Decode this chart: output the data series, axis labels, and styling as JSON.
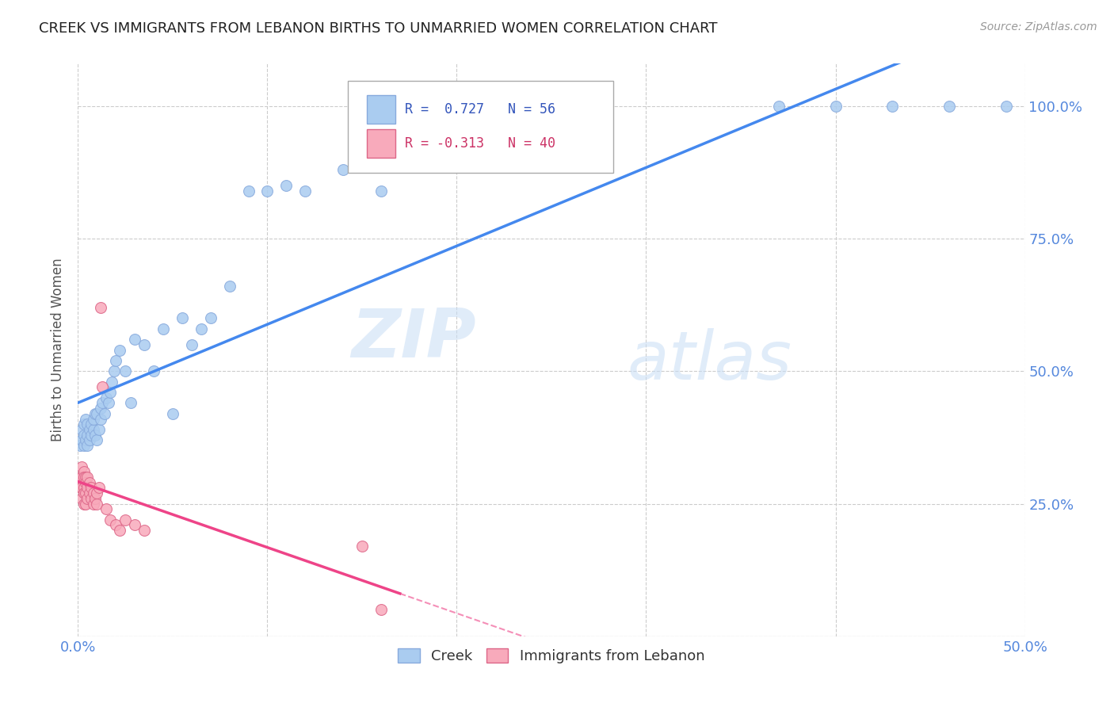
{
  "title": "CREEK VS IMMIGRANTS FROM LEBANON BIRTHS TO UNMARRIED WOMEN CORRELATION CHART",
  "source": "Source: ZipAtlas.com",
  "ylabel": "Births to Unmarried Women",
  "xlim": [
    0,
    0.5
  ],
  "ylim": [
    0,
    1.08
  ],
  "yticks": [
    0.0,
    0.25,
    0.5,
    0.75,
    1.0
  ],
  "ytick_labels_right": [
    "",
    "25.0%",
    "50.0%",
    "75.0%",
    "100.0%"
  ],
  "xtick_positions": [
    0.0,
    0.1,
    0.2,
    0.3,
    0.4,
    0.5
  ],
  "xtick_labels": [
    "0.0%",
    "",
    "",
    "",
    "",
    "50.0%"
  ],
  "creek_color": "#aaccf0",
  "creek_edge_color": "#88aadd",
  "lebanon_color": "#f8aabb",
  "lebanon_edge_color": "#dd6688",
  "creek_R": 0.727,
  "creek_N": 56,
  "lebanon_R": -0.313,
  "lebanon_N": 40,
  "creek_line_color": "#4488ee",
  "lebanon_line_color": "#ee4488",
  "watermark_zip": "ZIP",
  "watermark_atlas": "atlas",
  "background_color": "#ffffff",
  "grid_color": "#cccccc",
  "axis_color": "#5588dd",
  "title_color": "#222222",
  "ylabel_color": "#555555",
  "creek_x": [
    0.001,
    0.002,
    0.002,
    0.003,
    0.003,
    0.003,
    0.004,
    0.004,
    0.005,
    0.005,
    0.005,
    0.006,
    0.006,
    0.007,
    0.007,
    0.008,
    0.008,
    0.009,
    0.009,
    0.01,
    0.01,
    0.011,
    0.012,
    0.012,
    0.013,
    0.014,
    0.015,
    0.016,
    0.017,
    0.018,
    0.019,
    0.02,
    0.022,
    0.025,
    0.028,
    0.03,
    0.035,
    0.04,
    0.045,
    0.05,
    0.055,
    0.06,
    0.065,
    0.07,
    0.08,
    0.09,
    0.1,
    0.11,
    0.12,
    0.14,
    0.16,
    0.37,
    0.4,
    0.43,
    0.46,
    0.49
  ],
  "creek_y": [
    0.36,
    0.37,
    0.39,
    0.36,
    0.38,
    0.4,
    0.37,
    0.41,
    0.36,
    0.38,
    0.4,
    0.37,
    0.39,
    0.38,
    0.4,
    0.39,
    0.41,
    0.38,
    0.42,
    0.37,
    0.42,
    0.39,
    0.43,
    0.41,
    0.44,
    0.42,
    0.45,
    0.44,
    0.46,
    0.48,
    0.5,
    0.52,
    0.54,
    0.5,
    0.44,
    0.56,
    0.55,
    0.5,
    0.58,
    0.42,
    0.6,
    0.55,
    0.58,
    0.6,
    0.66,
    0.84,
    0.84,
    0.85,
    0.84,
    0.88,
    0.84,
    1.0,
    1.0,
    1.0,
    1.0,
    1.0
  ],
  "lebanon_x": [
    0.001,
    0.001,
    0.001,
    0.002,
    0.002,
    0.002,
    0.002,
    0.003,
    0.003,
    0.003,
    0.003,
    0.003,
    0.004,
    0.004,
    0.004,
    0.004,
    0.005,
    0.005,
    0.005,
    0.006,
    0.006,
    0.007,
    0.007,
    0.008,
    0.008,
    0.009,
    0.01,
    0.01,
    0.011,
    0.012,
    0.013,
    0.015,
    0.017,
    0.02,
    0.022,
    0.025,
    0.03,
    0.035,
    0.15,
    0.16
  ],
  "lebanon_y": [
    0.3,
    0.29,
    0.28,
    0.32,
    0.3,
    0.28,
    0.26,
    0.31,
    0.3,
    0.28,
    0.27,
    0.25,
    0.3,
    0.29,
    0.27,
    0.25,
    0.3,
    0.28,
    0.26,
    0.29,
    0.27,
    0.28,
    0.26,
    0.27,
    0.25,
    0.26,
    0.27,
    0.25,
    0.28,
    0.62,
    0.47,
    0.24,
    0.22,
    0.21,
    0.2,
    0.22,
    0.21,
    0.2,
    0.17,
    0.05
  ],
  "marker_size": 100
}
